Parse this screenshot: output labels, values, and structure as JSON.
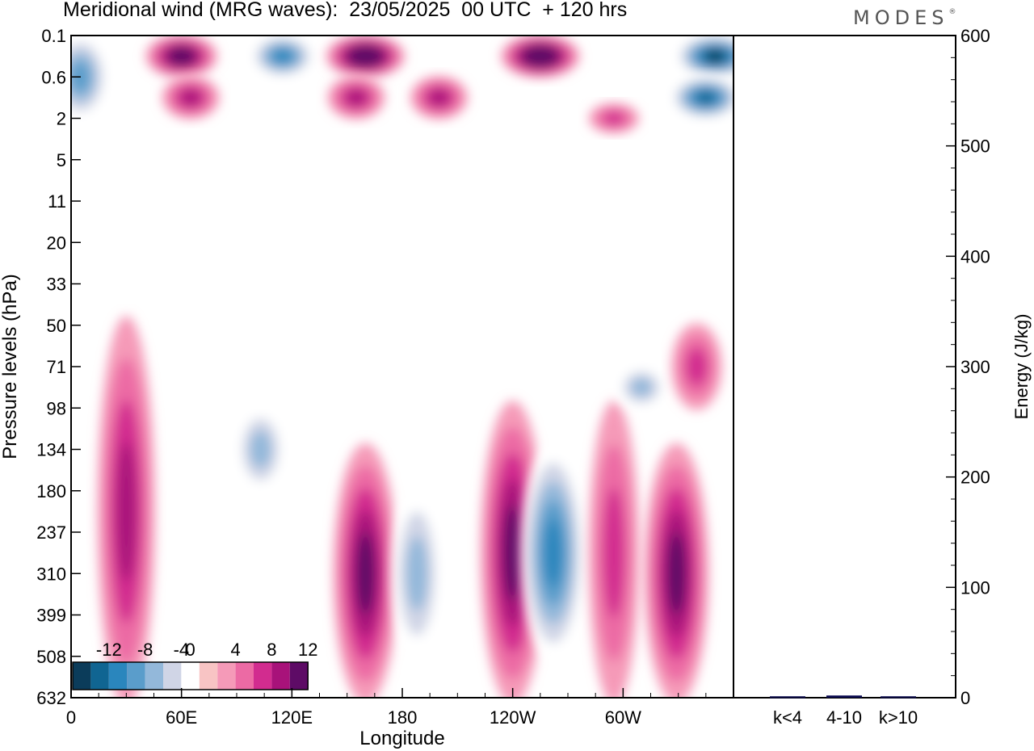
{
  "title": "Meridional wind (MRG waves):  23/05/2025  00 UTC  + 120 hrs",
  "brand": "MODES",
  "chart_data": [
    {
      "type": "heatmap",
      "title": "Meridional wind (MRG waves):  23/05/2025  00 UTC  + 120 hrs",
      "xlabel": "Longitude",
      "ylabel": "Pressure levels (hPa)",
      "x_ticks": [
        "0",
        "60E",
        "120E",
        "180",
        "120W",
        "60W"
      ],
      "x_tick_positions_deg": [
        0,
        60,
        120,
        180,
        240,
        300
      ],
      "xlim_deg": [
        0,
        360
      ],
      "y_ticks": [
        "0.1",
        "0.6",
        "2",
        "5",
        "11",
        "20",
        "33",
        "50",
        "71",
        "98",
        "134",
        "180",
        "237",
        "310",
        "399",
        "508",
        "632"
      ],
      "colorbar": {
        "tick_labels": [
          "-12",
          "-8",
          "-4",
          "0",
          "4",
          "8",
          "12"
        ],
        "levels": [
          -14,
          -12,
          -10,
          -8,
          -6,
          -4,
          -2,
          2,
          4,
          6,
          8,
          10,
          12,
          14
        ],
        "colors": [
          "#0b3c5a",
          "#106592",
          "#2a86bd",
          "#5a9dcb",
          "#93b8da",
          "#d0d5e6",
          "#ffffff",
          "#f8c4c4",
          "#f59ab8",
          "#ec6aa4",
          "#d22c8f",
          "#a8127a",
          "#5e0b66"
        ]
      },
      "features": [
        {
          "sign": "+",
          "lon": 160,
          "level_from": "134",
          "level_to": "632",
          "peak": 10
        },
        {
          "sign": "-",
          "lon": 188,
          "level_from": "180",
          "level_to": "508",
          "peak": -6
        },
        {
          "sign": "+",
          "lon": 240,
          "level_from": "98",
          "level_to": "632",
          "peak": 10
        },
        {
          "sign": "-",
          "lon": 262,
          "level_from": "134",
          "level_to": "508",
          "peak": -10
        },
        {
          "sign": "+",
          "lon": 295,
          "level_from": "98",
          "level_to": "632",
          "peak": 6
        },
        {
          "sign": "+",
          "lon": 329,
          "level_from": "134",
          "level_to": "632",
          "peak": 10
        },
        {
          "sign": "+",
          "lon": 30,
          "level_from": "50",
          "level_to": "632",
          "peak": 8
        },
        {
          "sign": "-",
          "lon": 103,
          "level_from": "98",
          "level_to": "180",
          "peak": -6
        },
        {
          "sign": "-",
          "lon": 310,
          "level_from": "71",
          "level_to": "98",
          "peak": -6
        },
        {
          "sign": "+",
          "lon": 340,
          "level_from": "50",
          "level_to": "98",
          "peak": 6
        },
        {
          "sign": "-",
          "lon": 5,
          "level_from": "0.1",
          "level_to": "2",
          "peak": -8
        },
        {
          "sign": "+",
          "lon": 60,
          "level_from": "0.1",
          "level_to": "0.6",
          "peak": 12
        },
        {
          "sign": "-",
          "lon": 115,
          "level_from": "0.1",
          "level_to": "0.6",
          "peak": -10
        },
        {
          "sign": "+",
          "lon": 160,
          "level_from": "0.1",
          "level_to": "0.6",
          "peak": 14
        },
        {
          "sign": "+",
          "lon": 255,
          "level_from": "0.1",
          "level_to": "0.6",
          "peak": 14
        },
        {
          "sign": "-",
          "lon": 350,
          "level_from": "0.1",
          "level_to": "0.6",
          "peak": -14
        },
        {
          "sign": "-",
          "lon": 345,
          "level_from": "0.6",
          "level_to": "2",
          "peak": -12
        },
        {
          "sign": "+",
          "lon": 65,
          "level_from": "0.6",
          "level_to": "2",
          "peak": 8
        },
        {
          "sign": "+",
          "lon": 155,
          "level_from": "0.6",
          "level_to": "2",
          "peak": 8
        },
        {
          "sign": "+",
          "lon": 200,
          "level_from": "0.6",
          "level_to": "2",
          "peak": 8
        },
        {
          "sign": "+",
          "lon": 295,
          "level_from": "2",
          "level_to": "2",
          "peak": 6
        }
      ]
    },
    {
      "type": "bar",
      "title": "",
      "categories": [
        "k<4",
        "4-10",
        "k>10"
      ],
      "values": [
        0,
        2,
        0
      ],
      "ylabel": "Energy (J/kg)",
      "ylim": [
        0,
        600
      ],
      "y_ticks": [
        "0",
        "100",
        "200",
        "300",
        "400",
        "500",
        "600"
      ],
      "bar_color": "#0a0a50"
    }
  ]
}
